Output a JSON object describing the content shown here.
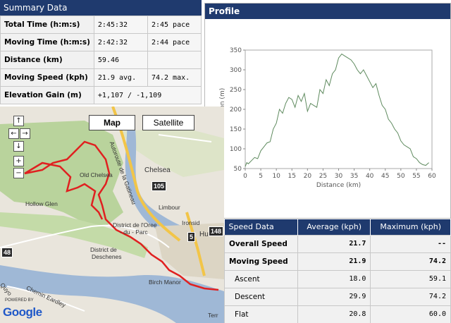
{
  "summary": {
    "title": "Summary Data",
    "rows": [
      {
        "label": "Total Time (h:m:s)",
        "v1": "2:45:32",
        "v2": "2:45 pace"
      },
      {
        "label": "Moving Time (h:m:s)",
        "v1": "2:42:32",
        "v2": "2:44 pace"
      },
      {
        "label": "Distance (km)",
        "v1": "59.46",
        "v2": ""
      },
      {
        "label": "Moving Speed (kph)",
        "v1": "21.9 avg.",
        "v2": "74.2 max."
      },
      {
        "label": "Elevation Gain (m)",
        "v1": "+1,107 / -1,109",
        "v2": ""
      }
    ]
  },
  "profile": {
    "title": "Profile",
    "chart_data": {
      "type": "line",
      "xlabel": "Distance (km)",
      "ylabel": "Elevation (m)",
      "xlim": [
        0,
        60
      ],
      "ylim": [
        50,
        350
      ],
      "x_ticks": [
        0,
        5,
        10,
        15,
        20,
        25,
        30,
        35,
        40,
        45,
        50,
        55,
        60
      ],
      "y_ticks": [
        50,
        100,
        150,
        200,
        250,
        300,
        350
      ],
      "line_color": "#5e8a5e",
      "series": [
        {
          "x": [
            0,
            0.5,
            1,
            2,
            3,
            4,
            5,
            6,
            7,
            8,
            9,
            10,
            11,
            12,
            13,
            14,
            15,
            16,
            17,
            18,
            19,
            20,
            21,
            22,
            23,
            24,
            25,
            26,
            27,
            28,
            29,
            30,
            31,
            32,
            33,
            34,
            35,
            36,
            37,
            38,
            39,
            40,
            41,
            42,
            43,
            44,
            45,
            46,
            47,
            48,
            49,
            50,
            51,
            52,
            53,
            54,
            55,
            56,
            57,
            58,
            59
          ],
          "y": [
            55,
            65,
            62,
            70,
            78,
            75,
            95,
            105,
            115,
            118,
            150,
            165,
            200,
            190,
            215,
            230,
            225,
            205,
            235,
            220,
            240,
            195,
            215,
            210,
            205,
            250,
            240,
            275,
            260,
            290,
            300,
            330,
            340,
            335,
            330,
            325,
            315,
            300,
            290,
            300,
            285,
            270,
            255,
            265,
            235,
            210,
            200,
            175,
            165,
            150,
            140,
            120,
            110,
            105,
            100,
            80,
            75,
            65,
            60,
            58,
            65
          ]
        }
      ]
    }
  },
  "map": {
    "buttons": {
      "map": "Map",
      "satellite": "Satellite"
    },
    "nav": {
      "up": "↑",
      "left": "←",
      "right": "→",
      "down": "↓",
      "zoom_in": "+",
      "zoom_out": "−"
    },
    "labels": {
      "chelsea": "Chelsea",
      "old_chelsea": "Old Chelsea",
      "hollow_glen": "Hollow Glen",
      "limbour": "Limbour",
      "oree": "District de l'Oree",
      "du_parc": "- du - Parc",
      "deschenes1": "District de",
      "deschenes2": "Deschenes",
      "birch_manor": "Birch Manor",
      "hull": "Hull",
      "ironside": "Ironsid",
      "autoroute": "Autoroute de la Gatineau",
      "eardley": "Chemin Eardley",
      "quyon": "Quyo",
      "terr": "Terr"
    },
    "highways": {
      "h105": "105",
      "h5": "5",
      "h48": "48",
      "h148": "148"
    },
    "powered_by": "POWERED BY",
    "google": "Google",
    "route_color": "#e02020"
  },
  "speed": {
    "headers": {
      "name": "Speed Data",
      "avg": "Average (kph)",
      "max": "Maximum (kph)"
    },
    "rows": [
      {
        "name": "Overall Speed",
        "avg": "21.7",
        "max": "--",
        "bold": true
      },
      {
        "name": "Moving Speed",
        "avg": "21.9",
        "max": "74.2",
        "bold": true
      },
      {
        "name": "Ascent",
        "avg": "18.0",
        "max": "59.1",
        "bold": false
      },
      {
        "name": "Descent",
        "avg": "29.9",
        "max": "74.2",
        "bold": false
      },
      {
        "name": "Flat",
        "avg": "20.8",
        "max": "60.0",
        "bold": false
      }
    ]
  }
}
